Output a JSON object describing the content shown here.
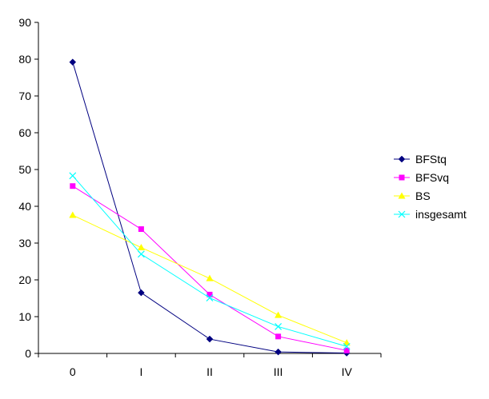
{
  "chart_data": {
    "type": "line",
    "categories": [
      "0",
      "I",
      "II",
      "III",
      "IV"
    ],
    "ylim": [
      0,
      90
    ],
    "yticks": [
      0,
      10,
      20,
      30,
      40,
      50,
      60,
      70,
      80,
      90
    ],
    "grid": false,
    "legend_position": "right",
    "series": [
      {
        "name": "BFStq",
        "values": [
          79.2,
          16.5,
          3.9,
          0.4,
          0.1
        ],
        "color": "#000080",
        "marker": "diamond"
      },
      {
        "name": "BFSvq",
        "values": [
          45.5,
          33.8,
          16.0,
          4.6,
          0.8
        ],
        "color": "#ff00ff",
        "marker": "square"
      },
      {
        "name": "BS",
        "values": [
          37.6,
          28.8,
          20.4,
          10.4,
          2.9
        ],
        "color": "#ffff00",
        "marker": "triangle"
      },
      {
        "name": "insgesamt",
        "values": [
          48.3,
          27.0,
          15.1,
          7.3,
          1.9
        ],
        "color": "#00ffff",
        "marker": "x"
      }
    ]
  }
}
